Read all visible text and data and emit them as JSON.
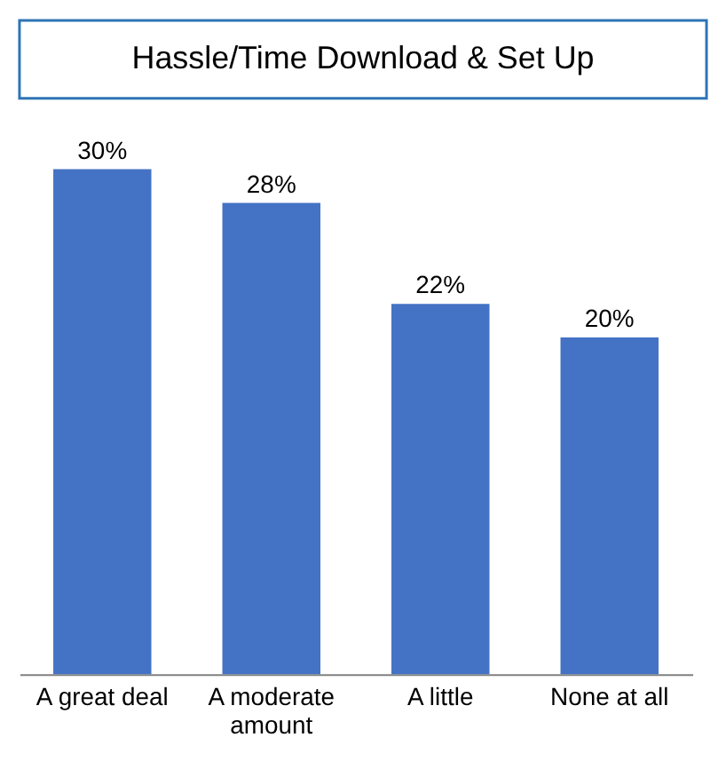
{
  "chart_data": {
    "type": "bar",
    "title": "Hassle/Time Download & Set Up",
    "categories": [
      "A great deal",
      "A moderate amount",
      "A little",
      "None at all"
    ],
    "values": [
      30,
      28,
      22,
      20
    ],
    "color": "#4472c4",
    "value_labels": [
      "30%",
      "28%",
      "22%",
      "20%"
    ],
    "grid": false
  }
}
